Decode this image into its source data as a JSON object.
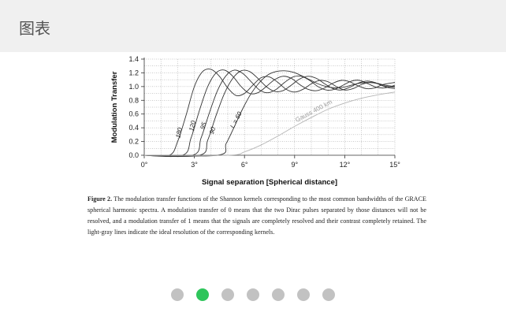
{
  "header": {
    "title": "图表"
  },
  "chart_data": {
    "type": "line",
    "xlabel": "Signal separation [Spherical distance]",
    "ylabel": "Modulation Transfer",
    "xlim": [
      0,
      15
    ],
    "ylim": [
      0,
      1.4
    ],
    "x_ticks": [
      0,
      3,
      6,
      9,
      12,
      15
    ],
    "x_tick_labels": [
      "0°",
      "3°",
      "6°",
      "9°",
      "12°",
      "15°"
    ],
    "y_ticks": [
      0.0,
      0.2,
      0.4,
      0.6,
      0.8,
      1.0,
      1.2,
      1.4
    ],
    "y_tick_labels": [
      "0.0",
      "0.2",
      "0.4",
      "0.6",
      "0.8",
      "1.0",
      "1.2",
      "1.4"
    ],
    "grid": true,
    "series": [
      {
        "name": "180",
        "color": "#333333",
        "x": [
          0,
          1.5,
          2.0,
          2.5,
          3.0,
          3.5,
          4.0,
          4.5,
          5.0,
          5.5,
          6.0,
          6.5,
          7.0,
          7.5,
          8.0,
          8.5,
          9.0,
          9.5,
          10.0,
          10.5,
          11.0,
          11.5,
          12.0,
          12.5,
          13.0,
          13.5,
          14.0,
          14.5,
          15.0
        ],
        "y": [
          0,
          0,
          0.2,
          0.58,
          1.0,
          1.22,
          1.25,
          1.15,
          0.98,
          0.87,
          0.9,
          1.02,
          1.13,
          1.14,
          1.06,
          0.96,
          0.92,
          0.96,
          1.04,
          1.09,
          1.07,
          1.0,
          0.95,
          0.97,
          1.03,
          1.06,
          1.04,
          0.99,
          0.97
        ]
      },
      {
        "name": "120",
        "color": "#333333",
        "x": [
          0,
          2.3,
          2.8,
          3.3,
          3.8,
          4.3,
          4.8,
          5.3,
          5.8,
          6.3,
          6.8,
          7.3,
          7.8,
          8.3,
          8.8,
          9.3,
          9.8,
          10.3,
          10.8,
          11.3,
          11.8,
          12.3,
          12.8,
          13.3,
          13.8,
          14.3,
          15.0
        ],
        "y": [
          0,
          0,
          0.25,
          0.65,
          1.0,
          1.2,
          1.24,
          1.15,
          1.0,
          0.9,
          0.91,
          1.0,
          1.1,
          1.15,
          1.12,
          1.03,
          0.96,
          0.94,
          0.98,
          1.05,
          1.09,
          1.07,
          1.01,
          0.97,
          0.98,
          1.03,
          1.06
        ]
      },
      {
        "name": "95",
        "color": "#333333",
        "x": [
          0,
          2.9,
          3.4,
          3.9,
          4.4,
          4.9,
          5.4,
          5.9,
          6.4,
          6.9,
          7.4,
          7.9,
          8.4,
          8.9,
          9.4,
          9.9,
          10.4,
          10.9,
          11.4,
          11.9,
          12.4,
          12.9,
          13.4,
          13.9,
          14.4,
          15.0
        ],
        "y": [
          0,
          0,
          0.25,
          0.62,
          0.95,
          1.16,
          1.24,
          1.19,
          1.07,
          0.95,
          0.91,
          0.96,
          1.06,
          1.14,
          1.15,
          1.09,
          1.0,
          0.95,
          0.96,
          1.02,
          1.08,
          1.09,
          1.04,
          0.99,
          0.98,
          1.02
        ]
      },
      {
        "name": "90",
        "color": "#333333",
        "x": [
          0,
          3.3,
          3.8,
          4.3,
          4.8,
          5.3,
          5.8,
          6.3,
          6.8,
          7.3,
          7.8,
          8.3,
          8.8,
          9.3,
          9.8,
          10.3,
          10.8,
          11.3,
          11.8,
          12.3,
          12.8,
          13.3,
          13.8,
          14.3,
          15.0
        ],
        "y": [
          0,
          0,
          0.22,
          0.58,
          0.9,
          1.12,
          1.23,
          1.22,
          1.12,
          1.0,
          0.93,
          0.94,
          1.02,
          1.11,
          1.15,
          1.12,
          1.04,
          0.97,
          0.95,
          0.99,
          1.05,
          1.08,
          1.06,
          1.01,
          0.99
        ]
      },
      {
        "name": "L = 60",
        "color": "#333333",
        "x": [
          0,
          4.4,
          4.9,
          5.4,
          5.9,
          6.4,
          6.9,
          7.4,
          7.9,
          8.4,
          8.9,
          9.4,
          9.9,
          10.4,
          10.9,
          11.4,
          11.9,
          12.4,
          12.9,
          13.4,
          13.9,
          14.4,
          15.0
        ],
        "y": [
          0,
          0,
          0.17,
          0.42,
          0.68,
          0.9,
          1.06,
          1.17,
          1.22,
          1.23,
          1.21,
          1.16,
          1.1,
          1.04,
          1.0,
          0.98,
          0.99,
          1.02,
          1.05,
          1.06,
          1.05,
          1.02,
          1.0
        ]
      },
      {
        "name": "Gauss 400 km",
        "color": "#b5b5b5",
        "x": [
          0,
          5.0,
          6.0,
          7.0,
          8.0,
          9.0,
          10.0,
          11.0,
          12.0,
          13.0,
          14.0,
          15.0
        ],
        "y": [
          0,
          0,
          0.05,
          0.15,
          0.28,
          0.42,
          0.55,
          0.67,
          0.76,
          0.83,
          0.88,
          0.92
        ]
      }
    ],
    "line_labels": [
      {
        "text": "180",
        "x": 2.2,
        "y": 0.32
      },
      {
        "text": "120",
        "x": 3.0,
        "y": 0.42
      },
      {
        "text": "95",
        "x": 3.65,
        "y": 0.42
      },
      {
        "text": "90",
        "x": 4.2,
        "y": 0.35
      },
      {
        "text": "L = 60",
        "x": 5.6,
        "y": 0.5
      },
      {
        "text": "Gauss 400 km",
        "x": 10.2,
        "y": 0.62
      }
    ]
  },
  "caption": {
    "figure_label": "Figure 2.",
    "text": "The modulation transfer functions of the Shannon kernels corresponding to the most common bandwidths of the GRACE spherical harmonic spectra. A modulation transfer of 0 means that the two Dirac pulses separated by those distances will not be resolved, and a modulation transfer of 1 means that the signals are completely resolved and their contrast completely retained. The light-gray lines indicate the ideal resolution of the corresponding kernels."
  },
  "carousel": {
    "count": 7,
    "active_index": 1,
    "active_color": "#2ec55b",
    "inactive_color": "#c2c2c2"
  }
}
